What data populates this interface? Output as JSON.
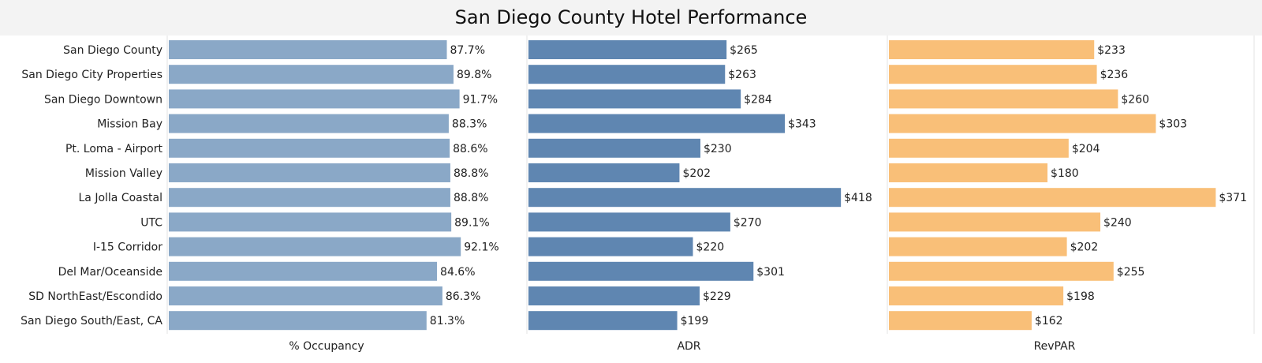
{
  "chart_data": {
    "title": "San Diego County Hotel Performance",
    "type": "bar",
    "orientation": "horizontal",
    "categories": [
      "San Diego County",
      "San Diego City Properties",
      "San Diego Downtown",
      "Mission Bay",
      "Pt. Loma - Airport",
      "Mission Valley",
      "La Jolla Coastal",
      "UTC",
      "I-15 Corridor",
      "Del Mar/Oceanside",
      "SD NorthEast/Escondido",
      "San Diego South/East, CA"
    ],
    "series": [
      {
        "name": "% Occupancy",
        "values": [
          87.7,
          89.8,
          91.7,
          88.3,
          88.6,
          88.8,
          88.8,
          89.1,
          92.1,
          84.6,
          86.3,
          81.3
        ],
        "labels": [
          "87.7%",
          "89.8%",
          "91.7%",
          "88.3%",
          "88.6%",
          "88.8%",
          "88.8%",
          "89.1%",
          "92.1%",
          "84.6%",
          "86.3%",
          "81.3%"
        ],
        "xlim": [
          0,
          102
        ],
        "color": "#8aa8c7"
      },
      {
        "name": "ADR",
        "values": [
          265,
          263,
          284,
          343,
          230,
          202,
          418,
          270,
          220,
          301,
          229,
          199
        ],
        "labels": [
          "$265",
          "$263",
          "$284",
          "$343",
          "$230",
          "$202",
          "$418",
          "$270",
          "$220",
          "$301",
          "$229",
          "$199"
        ],
        "xlim": [
          0,
          440
        ],
        "color": "#5f86b1"
      },
      {
        "name": "RevPAR",
        "values": [
          233,
          236,
          260,
          303,
          204,
          180,
          371,
          240,
          202,
          255,
          198,
          162
        ],
        "labels": [
          "$233",
          "$236",
          "$260",
          "$303",
          "$204",
          "$180",
          "$371",
          "$240",
          "$202",
          "$255",
          "$198",
          "$162"
        ],
        "xlim": [
          0,
          385
        ],
        "color": "#f9bf78"
      }
    ],
    "grid": false,
    "legend": "none"
  }
}
